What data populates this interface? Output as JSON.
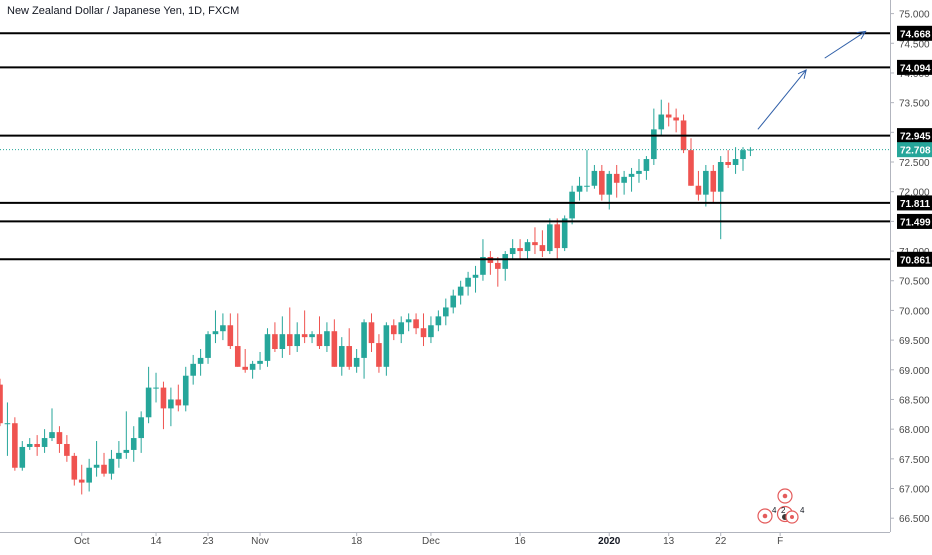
{
  "chart_data": {
    "type": "candlestick",
    "title": "New Zealand Dollar / Japanese Yen, 1D, FXCM",
    "ylim": [
      66.4,
      75.3
    ],
    "y_ticks": [
      "75.000",
      "74.500",
      "74.000",
      "73.500",
      "73.000",
      "72.500",
      "72.000",
      "71.500",
      "71.000",
      "70.500",
      "70.000",
      "69.500",
      "69.000",
      "68.500",
      "68.000",
      "67.500",
      "67.000",
      "66.500"
    ],
    "x_ticks": [
      {
        "label": "Oct",
        "index": 11,
        "bold": false
      },
      {
        "label": "14",
        "index": 21,
        "bold": false
      },
      {
        "label": "23",
        "index": 28,
        "bold": false
      },
      {
        "label": "Nov",
        "index": 35,
        "bold": false
      },
      {
        "label": "18",
        "index": 48,
        "bold": false
      },
      {
        "label": "Dec",
        "index": 58,
        "bold": false
      },
      {
        "label": "16",
        "index": 70,
        "bold": false
      },
      {
        "label": "2020",
        "index": 82,
        "bold": true
      },
      {
        "label": "13",
        "index": 90,
        "bold": false
      },
      {
        "label": "22",
        "index": 97,
        "bold": false
      },
      {
        "label": "F",
        "index": 105,
        "bold": false
      }
    ],
    "candles": [
      [
        68.75,
        68.85,
        68.05,
        68.1
      ],
      [
        68.1,
        68.45,
        67.55,
        68.1
      ],
      [
        68.1,
        68.2,
        67.3,
        67.35
      ],
      [
        67.35,
        67.8,
        67.3,
        67.7
      ],
      [
        67.7,
        67.85,
        67.65,
        67.75
      ],
      [
        67.75,
        67.9,
        67.55,
        67.7
      ],
      [
        67.7,
        68.0,
        67.6,
        67.85
      ],
      [
        67.85,
        68.35,
        67.8,
        67.95
      ],
      [
        67.95,
        68.05,
        67.6,
        67.75
      ],
      [
        67.75,
        67.9,
        67.45,
        67.55
      ],
      [
        67.55,
        67.6,
        67.05,
        67.15
      ],
      [
        67.15,
        67.4,
        66.9,
        67.1
      ],
      [
        67.1,
        67.5,
        66.95,
        67.35
      ],
      [
        67.35,
        67.8,
        67.2,
        67.4
      ],
      [
        67.4,
        67.6,
        67.2,
        67.25
      ],
      [
        67.25,
        67.65,
        67.15,
        67.5
      ],
      [
        67.5,
        67.8,
        67.35,
        67.6
      ],
      [
        67.6,
        68.3,
        67.5,
        67.65
      ],
      [
        67.65,
        68.05,
        67.45,
        67.85
      ],
      [
        67.85,
        68.3,
        67.6,
        68.2
      ],
      [
        68.2,
        69.05,
        68.1,
        68.7
      ],
      [
        68.7,
        68.95,
        68.45,
        68.7
      ],
      [
        68.7,
        68.8,
        68.0,
        68.35
      ],
      [
        68.35,
        68.7,
        68.05,
        68.5
      ],
      [
        68.5,
        68.75,
        68.3,
        68.4
      ],
      [
        68.4,
        69.05,
        68.3,
        68.9
      ],
      [
        68.9,
        69.25,
        68.75,
        69.1
      ],
      [
        69.1,
        69.35,
        68.9,
        69.2
      ],
      [
        69.2,
        69.65,
        69.1,
        69.6
      ],
      [
        69.6,
        70.0,
        69.45,
        69.65
      ],
      [
        69.65,
        69.95,
        69.5,
        69.75
      ],
      [
        69.75,
        69.95,
        69.35,
        69.4
      ],
      [
        69.4,
        69.95,
        69.05,
        69.05
      ],
      [
        69.05,
        69.35,
        68.95,
        69.0
      ],
      [
        69.0,
        69.15,
        68.85,
        69.1
      ],
      [
        69.1,
        69.3,
        69.0,
        69.15
      ],
      [
        69.15,
        69.7,
        69.05,
        69.6
      ],
      [
        69.6,
        69.8,
        69.3,
        69.35
      ],
      [
        69.35,
        69.9,
        69.2,
        69.6
      ],
      [
        69.6,
        70.05,
        69.25,
        69.4
      ],
      [
        69.4,
        69.8,
        69.3,
        69.6
      ],
      [
        69.6,
        70.0,
        69.45,
        69.55
      ],
      [
        69.55,
        69.65,
        69.45,
        69.6
      ],
      [
        69.6,
        69.9,
        69.35,
        69.4
      ],
      [
        69.4,
        69.8,
        69.3,
        69.65
      ],
      [
        69.65,
        69.85,
        69.05,
        69.05
      ],
      [
        69.05,
        69.55,
        68.9,
        69.4
      ],
      [
        69.4,
        69.7,
        69.0,
        69.05
      ],
      [
        69.05,
        69.35,
        68.95,
        69.2
      ],
      [
        69.2,
        69.85,
        68.85,
        69.8
      ],
      [
        69.8,
        69.95,
        69.3,
        69.45
      ],
      [
        69.45,
        69.6,
        68.95,
        69.05
      ],
      [
        69.05,
        69.8,
        68.9,
        69.75
      ],
      [
        69.75,
        69.85,
        69.5,
        69.6
      ],
      [
        69.6,
        69.9,
        69.45,
        69.8
      ],
      [
        69.8,
        69.95,
        69.65,
        69.85
      ],
      [
        69.85,
        69.95,
        69.6,
        69.7
      ],
      [
        69.7,
        69.95,
        69.4,
        69.55
      ],
      [
        69.55,
        69.9,
        69.45,
        69.75
      ],
      [
        69.75,
        70.0,
        69.65,
        69.9
      ],
      [
        69.9,
        70.2,
        69.75,
        70.05
      ],
      [
        70.05,
        70.35,
        69.95,
        70.25
      ],
      [
        70.25,
        70.5,
        70.1,
        70.4
      ],
      [
        70.4,
        70.65,
        70.25,
        70.55
      ],
      [
        70.55,
        70.75,
        70.3,
        70.6
      ],
      [
        70.6,
        71.2,
        70.5,
        70.9
      ],
      [
        70.9,
        71.0,
        70.6,
        70.8
      ],
      [
        70.8,
        70.9,
        70.4,
        70.7
      ],
      [
        70.7,
        71.0,
        70.5,
        70.95
      ],
      [
        70.95,
        71.2,
        70.85,
        71.05
      ],
      [
        71.05,
        71.2,
        70.85,
        71.0
      ],
      [
        71.0,
        71.2,
        70.85,
        71.15
      ],
      [
        71.15,
        71.4,
        70.95,
        71.1
      ],
      [
        71.1,
        71.35,
        70.9,
        71.0
      ],
      [
        71.0,
        71.55,
        70.95,
        71.45
      ],
      [
        71.45,
        71.55,
        70.85,
        71.05
      ],
      [
        71.05,
        71.6,
        71.0,
        71.55
      ],
      [
        71.55,
        72.1,
        71.45,
        72.0
      ],
      [
        72.0,
        72.25,
        71.85,
        72.1
      ],
      [
        72.1,
        72.7,
        72.0,
        72.1
      ],
      [
        72.1,
        72.45,
        72.05,
        72.35
      ],
      [
        72.35,
        72.45,
        71.85,
        71.95
      ],
      [
        71.95,
        72.35,
        71.7,
        72.3
      ],
      [
        72.3,
        72.45,
        71.9,
        72.15
      ],
      [
        72.15,
        72.35,
        71.95,
        72.25
      ],
      [
        72.25,
        72.4,
        72.0,
        72.3
      ],
      [
        72.3,
        72.55,
        72.15,
        72.35
      ],
      [
        72.35,
        72.6,
        72.2,
        72.55
      ],
      [
        72.55,
        73.4,
        72.45,
        73.05
      ],
      [
        73.05,
        73.55,
        72.95,
        73.3
      ],
      [
        73.3,
        73.5,
        73.1,
        73.25
      ],
      [
        73.25,
        73.4,
        73.0,
        73.2
      ],
      [
        73.2,
        73.3,
        72.65,
        72.7
      ],
      [
        72.7,
        72.9,
        72.1,
        72.1
      ],
      [
        72.1,
        72.35,
        71.85,
        71.95
      ],
      [
        71.95,
        72.45,
        71.75,
        72.35
      ],
      [
        72.35,
        72.45,
        71.8,
        72.0
      ],
      [
        72.0,
        72.6,
        71.2,
        72.5
      ],
      [
        72.5,
        72.7,
        72.4,
        72.45
      ],
      [
        72.45,
        72.75,
        72.3,
        72.55
      ],
      [
        72.55,
        72.75,
        72.35,
        72.7
      ],
      [
        72.7,
        72.75,
        72.6,
        72.71
      ]
    ],
    "horizontal_levels": [
      "74.668",
      "74.094",
      "72.945",
      "72.708",
      "71.811",
      "71.499",
      "70.861"
    ],
    "current_price": "72.708",
    "arrow_projection": [
      {
        "from_index": 102,
        "from_value": 73.05,
        "to_index": 108.5,
        "to_value": 74.05
      },
      {
        "from_index": 111,
        "from_value": 74.25,
        "to_index": 116.5,
        "to_value": 74.7
      }
    ],
    "event_markers": {
      "labels": [
        "4",
        "2",
        "4"
      ]
    },
    "colors": {
      "up": "#26a69a",
      "down": "#ef5350",
      "level_line": "#000000",
      "price_line": "#26a69a",
      "arrow": "#2f5fa8",
      "axis_text": "#4a4a4a"
    }
  }
}
